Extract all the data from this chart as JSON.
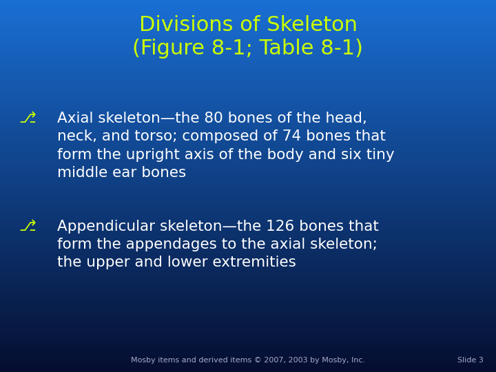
{
  "title_line1": "Divisions of Skeleton",
  "title_line2": "(Figure 8-1; Table 8-1)",
  "title_color": "#ccff00",
  "title_fontsize": 22,
  "bullet_color": "#ffffff",
  "bullet_fontsize": 15.5,
  "bullet_symbol": "⎇",
  "bullet_symbol_color": "#ccff00",
  "bullets": [
    "Axial skeleton—the 80 bones of the head,\nneck, and torso; composed of 74 bones that\nform the upright axis of the body and six tiny\nmiddle ear bones",
    "Appendicular skeleton—the 126 bones that\nform the appendages to the axial skeleton;\nthe upper and lower extremities"
  ],
  "footer_text": "Mosby items and derived items © 2007, 2003 by Mosby, Inc.",
  "footer_right": "Slide 3",
  "footer_color": "#aaaacc",
  "footer_fontsize": 8,
  "bg_color_top": "#1a6fd4",
  "bg_color_bottom": "#050e30",
  "figsize": [
    7.2,
    5.4
  ],
  "dpi": 100
}
